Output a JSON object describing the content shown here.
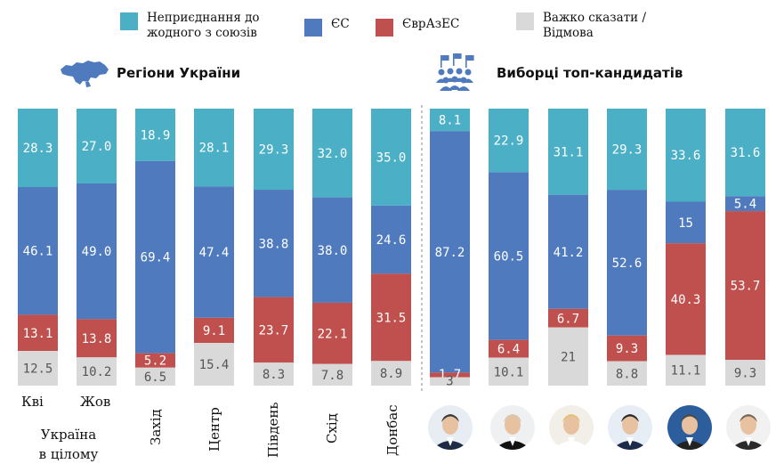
{
  "legend": [
    {
      "label": "Неприєднання до\nжодного з союзів",
      "color": "#4BAFC6"
    },
    {
      "label": "ЄС",
      "color": "#4F7BBE"
    },
    {
      "label": "ЄврАзЕС",
      "color": "#C0504D"
    },
    {
      "label": "Важко сказати /\nВідмова",
      "color": "#D9D9D9"
    }
  ],
  "sections": {
    "regions_title": "Регіони України",
    "voters_title": "Виборці топ-кандидатів",
    "ukraine_whole_label": "Україна\nв цілому"
  },
  "icons": {
    "regions": "ukraine-map-icon",
    "voters": "voters-crowd-icon"
  },
  "chart_data": {
    "type": "bar",
    "stacked": true,
    "normalized_percent": true,
    "categories": [
      "Кві",
      "Жов",
      "Захід",
      "Центр",
      "Південь",
      "Схід",
      "Донбас",
      "Кандидат 1",
      "Кандидат 2",
      "Кандидат 3",
      "Кандидат 4",
      "Кандидат 5",
      "Кандидат 6"
    ],
    "category_label_style": [
      "horizontal",
      "horizontal",
      "vertical",
      "vertical",
      "vertical",
      "vertical",
      "vertical",
      "photo",
      "photo",
      "photo",
      "photo",
      "photo",
      "photo"
    ],
    "series": [
      {
        "name": "Неприєднання до жодного з союзів",
        "color": "#4BAFC6",
        "values": [
          28.3,
          27.0,
          18.9,
          28.1,
          29.3,
          32.0,
          35.0,
          8.1,
          22.9,
          31.1,
          29.3,
          33.6,
          31.6
        ]
      },
      {
        "name": "ЄС",
        "color": "#4F7BBE",
        "values": [
          46.1,
          49.0,
          69.4,
          47.4,
          38.8,
          38.0,
          24.6,
          87.2,
          60.5,
          41.2,
          52.6,
          15,
          5.4
        ]
      },
      {
        "name": "ЄврАзЕС",
        "color": "#C0504D",
        "values": [
          13.1,
          13.8,
          5.2,
          9.1,
          23.7,
          22.1,
          31.5,
          1.7,
          6.4,
          6.7,
          9.3,
          40.3,
          53.7
        ]
      },
      {
        "name": "Важко сказати / Відмова",
        "color": "#D9D9D9",
        "values": [
          12.5,
          10.2,
          6.5,
          15.4,
          8.3,
          7.8,
          8.9,
          3,
          10.1,
          21,
          8.8,
          11.1,
          9.3
        ]
      }
    ],
    "value_labels": [
      [
        "28.3",
        "27.0",
        "18.9",
        "28.1",
        "29.3",
        "32.0",
        "35.0",
        "8.1",
        "22.9",
        "31.1",
        "29.3",
        "33.6",
        "31.6"
      ],
      [
        "46.1",
        "49.0",
        "69.4",
        "47.4",
        "38.8",
        "38.0",
        "24.6",
        "87.2",
        "60.5",
        "41.2",
        "52.6",
        "15",
        "5.4"
      ],
      [
        "13.1",
        "13.8",
        "5.2",
        "9.1",
        "23.7",
        "22.1",
        "31.5",
        "1.7",
        "6.4",
        "6.7",
        "9.3",
        "40.3",
        "53.7"
      ],
      [
        "12.5",
        "10.2",
        "6.5",
        "15.4",
        "8.3",
        "7.8",
        "8.9",
        "3",
        "10.1",
        "21",
        "8.8",
        "11.1",
        "9.3"
      ]
    ],
    "ylim": [
      0,
      100
    ],
    "grid": false,
    "legend_position": "top"
  }
}
